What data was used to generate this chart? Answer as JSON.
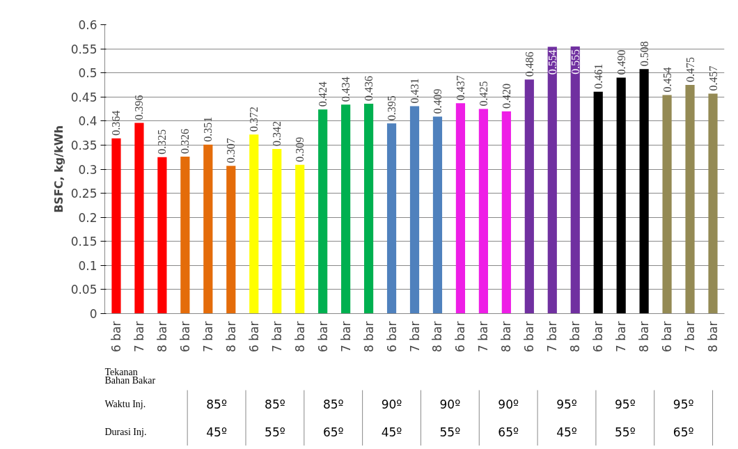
{
  "chart_data": {
    "type": "bar",
    "ylabel": "BSFC, kg/kWh",
    "categories": [
      "6 bar",
      "7 bar",
      "8 bar",
      "6 bar",
      "7 bar",
      "8 bar",
      "6 bar",
      "7 bar",
      "8 bar",
      "6 bar",
      "7 bar",
      "8 bar",
      "6 bar",
      "7 bar",
      "8 bar",
      "6 bar",
      "7 bar",
      "8 bar",
      "6 bar",
      "7 bar",
      "8 bar",
      "6 bar",
      "7 bar",
      "8 bar",
      "6 bar",
      "7 bar",
      "8 bar"
    ],
    "values": [
      0.364,
      0.396,
      0.325,
      0.326,
      0.351,
      0.307,
      0.372,
      0.342,
      0.309,
      0.424,
      0.434,
      0.436,
      0.395,
      0.431,
      0.409,
      0.437,
      0.425,
      0.42,
      0.486,
      0.554,
      0.555,
      0.461,
      0.49,
      0.508,
      0.454,
      0.475,
      0.457
    ],
    "value_labels": [
      "0.364",
      "0.396",
      "0.325",
      "0.326",
      "0.351",
      "0.307",
      "0.372",
      "0.342",
      "0.309",
      "0.424",
      "0.434",
      "0.436",
      "0.395",
      "0.431",
      "0.409",
      "0.437",
      "0.425",
      "0.420",
      "0.486",
      "0.554",
      "0.555",
      "0.461",
      "0.490",
      "0.508",
      "0.454",
      "0.475",
      "0.457"
    ],
    "colors": [
      "#ff0000",
      "#ff0000",
      "#ff0000",
      "#e46c0a",
      "#e46c0a",
      "#e46c0a",
      "#ffff00",
      "#ffff00",
      "#ffff00",
      "#00b050",
      "#00b050",
      "#00b050",
      "#4f81bd",
      "#4f81bd",
      "#4f81bd",
      "#ee1ee6",
      "#ee1ee6",
      "#ee1ee6",
      "#7030a0",
      "#7030a0",
      "#7030a0",
      "#000000",
      "#000000",
      "#000000",
      "#948a54",
      "#948a54",
      "#948a54"
    ],
    "ylim": [
      0,
      0.6
    ],
    "yticks": [
      0,
      0.05,
      0.1,
      0.15,
      0.2,
      0.25,
      0.3,
      0.35,
      0.4,
      0.45,
      0.5,
      0.55,
      0.6
    ],
    "grid": "y",
    "annotations": [
      "Tekanan\nBahan Bakar",
      "Waktu Inj.",
      "Durasi Inj.",
      "85º",
      "85º",
      "85º",
      "90º",
      "90º",
      "90º",
      "95º",
      "95º",
      "95º",
      "45º",
      "55º",
      "65º",
      "45º",
      "55º",
      "65º",
      "45º",
      "55º",
      "65º"
    ]
  }
}
